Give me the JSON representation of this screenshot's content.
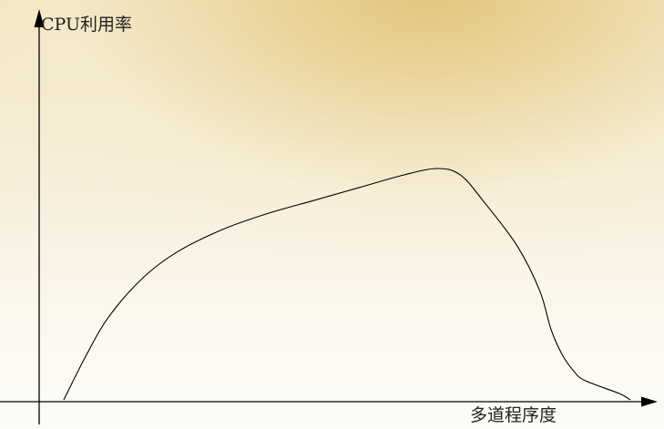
{
  "chart_data": {
    "type": "line",
    "title": "",
    "ylabel": "CPU利用率",
    "xlabel": "多道程序度",
    "grid": false,
    "legend": "none",
    "series": [
      {
        "x": [
          0,
          4,
          8,
          14,
          20,
          28,
          36,
          44,
          52,
          60,
          66,
          70,
          74,
          80,
          84,
          86,
          88,
          90,
          92,
          98,
          100
        ],
        "y": [
          0,
          14,
          26,
          38,
          46,
          53,
          58,
          62,
          66,
          70,
          72,
          70,
          62,
          48,
          34,
          22,
          14,
          9,
          6,
          2,
          0
        ]
      }
    ]
  }
}
